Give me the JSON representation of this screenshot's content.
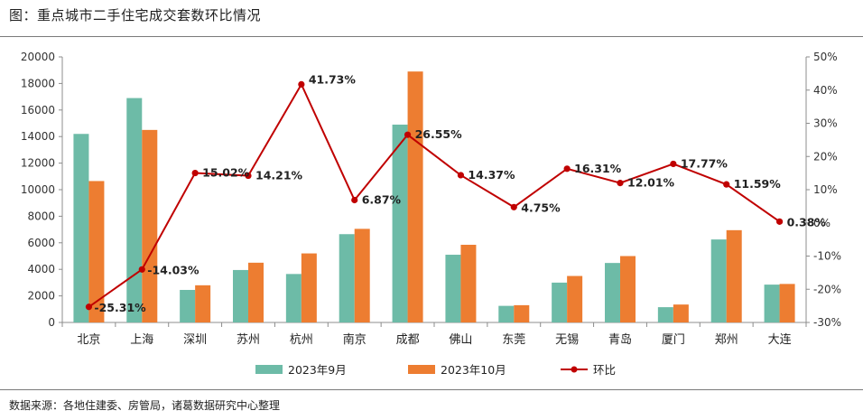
{
  "title": "图：重点城市二手住宅成交套数环比情况",
  "source": "数据来源：各地住建委、房管局，诸葛数据研究中心整理",
  "colors": {
    "sep": "#6DBBA7",
    "oct": "#ED7D31",
    "mom": "#C00000",
    "axis": "#8c8c8c"
  },
  "chart_data": {
    "type": "bar",
    "categories": [
      "北京",
      "上海",
      "深圳",
      "苏州",
      "杭州",
      "南京",
      "成都",
      "佛山",
      "东莞",
      "无锡",
      "青岛",
      "厦门",
      "郑州",
      "大连"
    ],
    "series": [
      {
        "name": "2023年9月",
        "type": "bar",
        "axis": "left",
        "values": [
          14200,
          16900,
          2450,
          3950,
          3650,
          6650,
          14900,
          5100,
          1250,
          3000,
          4480,
          1150,
          6250,
          2850
        ]
      },
      {
        "name": "2023年10月",
        "type": "bar",
        "axis": "left",
        "values": [
          10650,
          14500,
          2800,
          4500,
          5200,
          7050,
          18900,
          5850,
          1300,
          3500,
          5000,
          1350,
          6950,
          2900
        ]
      },
      {
        "name": "环比",
        "type": "line",
        "axis": "right",
        "values": [
          -25.31,
          -14.03,
          15.02,
          14.21,
          41.73,
          6.87,
          26.55,
          14.37,
          4.75,
          16.31,
          12.01,
          17.77,
          11.59,
          0.38
        ],
        "labels": [
          "-25.31%",
          "-14.03%",
          "15.02%",
          "14.21%",
          "41.73%",
          "6.87%",
          "26.55%",
          "14.37%",
          "4.75%",
          "16.31%",
          "12.01%",
          "17.77%",
          "11.59%",
          "0.38%"
        ]
      }
    ],
    "left_axis": {
      "min": 0,
      "max": 20000,
      "step": 2000,
      "ticks": [
        "0",
        "2000",
        "4000",
        "6000",
        "8000",
        "10000",
        "12000",
        "14000",
        "16000",
        "18000",
        "20000"
      ]
    },
    "right_axis": {
      "min": -30,
      "max": 50,
      "step": 10,
      "ticks": [
        "-30%",
        "-20%",
        "-10%",
        "0%",
        "10%",
        "20%",
        "30%",
        "40%",
        "50%"
      ]
    },
    "legend": {
      "position": "bottom",
      "entries": [
        "2023年9月",
        "2023年10月",
        "环比"
      ]
    },
    "grid": false
  }
}
